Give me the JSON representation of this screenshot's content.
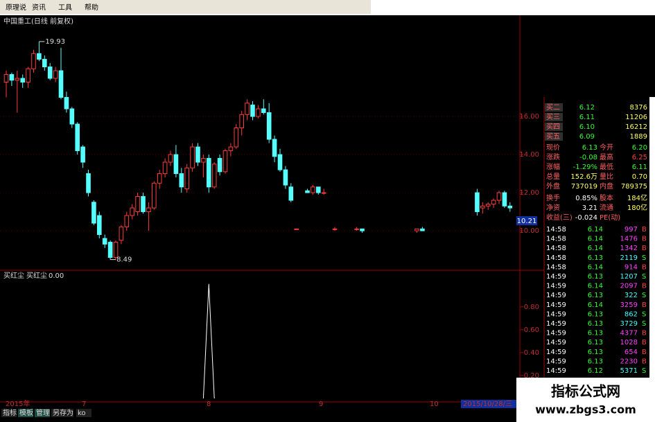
{
  "menu": [
    "原理说",
    "资讯",
    "工具",
    "帮助"
  ],
  "chart_data": [
    {
      "type": "candlestick",
      "title": "中国重工(日线 前复权)",
      "up_color": "#ff3b3b",
      "down_color": "#54ffff",
      "open": [
        17.8,
        18.2,
        17.9,
        18.0,
        17.8,
        18.5,
        19.3,
        19.0,
        18.6,
        18.0,
        18.4,
        17.0,
        16.4,
        15.6,
        14.4,
        13.0,
        11.5,
        10.8,
        9.6,
        9.4,
        8.6,
        9.5,
        10.2,
        10.8,
        11.0,
        11.8,
        11.0,
        11.2,
        12.5,
        13.0,
        13.6,
        14.0,
        13.0,
        12.2,
        13.3,
        14.4,
        13.6,
        13.8,
        12.3,
        13.8,
        13.1,
        14.2,
        14.4,
        15.4,
        16.1,
        16.6,
        16.0,
        16.4,
        16.2,
        14.8,
        14.0,
        13.2,
        12.3,
        10.1,
        null,
        12.1,
        12.0,
        12.3,
        12.0,
        null,
        10.1,
        null,
        null,
        null,
        10.1,
        10.1,
        null,
        null,
        null,
        null,
        null,
        null,
        null,
        null,
        null,
        10.0,
        10.1,
        null,
        null,
        null,
        null,
        null,
        null,
        null,
        null,
        null,
        12.0,
        11.2,
        11.3,
        11.4,
        11.6,
        12.0,
        11.3
      ],
      "high": [
        18.4,
        18.3,
        18.4,
        18.2,
        18.6,
        19.5,
        19.93,
        19.2,
        18.8,
        18.6,
        19.6,
        17.3,
        16.5,
        15.7,
        14.5,
        13.2,
        11.6,
        11.0,
        9.8,
        9.5,
        9.5,
        10.3,
        11.0,
        11.4,
        12.0,
        12.0,
        11.5,
        12.6,
        13.2,
        13.8,
        14.2,
        14.5,
        13.3,
        13.5,
        14.6,
        14.6,
        14.0,
        14.0,
        13.6,
        14.0,
        14.3,
        14.6,
        15.6,
        16.3,
        16.9,
        16.8,
        16.6,
        16.9,
        16.7,
        15.0,
        14.3,
        13.4,
        12.5,
        10.1,
        null,
        12.2,
        12.4,
        12.3,
        12.2,
        null,
        10.2,
        null,
        null,
        null,
        10.2,
        10.1,
        null,
        null,
        null,
        null,
        null,
        null,
        null,
        null,
        null,
        10.1,
        10.2,
        null,
        null,
        null,
        null,
        null,
        null,
        null,
        null,
        null,
        12.2,
        11.5,
        11.5,
        11.7,
        12.1,
        12.1,
        11.5
      ],
      "low": [
        17.0,
        17.6,
        16.2,
        17.5,
        17.5,
        18.3,
        18.9,
        18.4,
        17.9,
        17.8,
        16.9,
        16.2,
        15.4,
        14.0,
        13.3,
        11.8,
        10.3,
        9.6,
        9.1,
        8.49,
        8.5,
        9.3,
        10.0,
        10.6,
        10.8,
        10.9,
        10.0,
        11.1,
        12.2,
        12.8,
        13.4,
        12.8,
        12.0,
        12.0,
        13.1,
        13.4,
        12.8,
        12.0,
        12.2,
        12.9,
        13.0,
        13.9,
        14.3,
        15.0,
        15.8,
        15.8,
        15.9,
        16.1,
        14.6,
        13.6,
        13.1,
        12.2,
        11.5,
        10.1,
        null,
        12.0,
        11.9,
        11.9,
        11.9,
        null,
        10.0,
        null,
        null,
        null,
        10.0,
        9.9,
        null,
        null,
        null,
        null,
        null,
        null,
        null,
        null,
        null,
        9.9,
        10.0,
        null,
        null,
        null,
        null,
        null,
        null,
        null,
        null,
        null,
        10.8,
        10.9,
        11.1,
        11.2,
        11.4,
        11.2,
        11.0
      ],
      "close": [
        18.2,
        17.9,
        18.0,
        17.8,
        18.5,
        19.3,
        19.0,
        18.6,
        18.0,
        18.4,
        17.0,
        16.4,
        15.6,
        14.2,
        13.6,
        12.0,
        10.4,
        9.8,
        9.3,
        8.6,
        9.4,
        10.2,
        10.8,
        11.2,
        11.8,
        11.0,
        11.2,
        12.5,
        13.0,
        13.6,
        14.0,
        13.0,
        12.3,
        13.3,
        14.4,
        13.6,
        13.8,
        12.3,
        13.5,
        13.1,
        14.2,
        14.4,
        15.4,
        16.1,
        16.7,
        16.0,
        16.4,
        16.2,
        14.8,
        13.9,
        13.2,
        12.4,
        11.6,
        10.1,
        null,
        12.0,
        12.3,
        12.0,
        12.0,
        null,
        10.1,
        null,
        null,
        null,
        10.1,
        10.0,
        null,
        null,
        null,
        null,
        null,
        null,
        null,
        null,
        null,
        10.1,
        10.0,
        null,
        null,
        null,
        null,
        null,
        null,
        null,
        null,
        null,
        11.0,
        11.3,
        11.4,
        11.6,
        12.0,
        11.3,
        11.2
      ],
      "annotations": [
        "19.93",
        "8.49"
      ],
      "ylim": [
        7.93,
        21.31
      ],
      "yticks": [
        {
          "value": 10,
          "label": "10.00"
        },
        {
          "value": 12,
          "label": "12.00"
        },
        {
          "value": 14,
          "label": "14.00"
        },
        {
          "value": 16,
          "label": "16.00"
        }
      ],
      "price_tag": "10.21",
      "grid": true
    },
    {
      "type": "line",
      "title": "买红尘",
      "legend": "买红尘",
      "legend_value": "0.00",
      "color": "#ffffff",
      "x": [
        36,
        37,
        38
      ],
      "values": [
        0,
        1,
        0
      ],
      "ylim": [
        0,
        1.12
      ],
      "yticks": [
        {
          "value": 0.2,
          "label": "0.20"
        },
        {
          "value": 0.4,
          "label": "0.40"
        },
        {
          "value": 0.6,
          "label": "0.60"
        },
        {
          "value": 0.8,
          "label": "0.80"
        }
      ]
    }
  ],
  "x_axis": [
    "2015年",
    "7",
    "8",
    "9",
    "10",
    "2015/10/28/三"
  ],
  "order_book": [
    [
      "买二",
      "6.12",
      "8376"
    ],
    [
      "买三",
      "6.11",
      "11206"
    ],
    [
      "买四",
      "6.10",
      "16212"
    ],
    [
      "买五",
      "6.09",
      "1889"
    ]
  ],
  "quote": [
    [
      "现价",
      "6.13",
      "今开",
      "6.20"
    ],
    [
      "涨跌",
      "-0.08",
      "最高",
      "6.25"
    ],
    [
      "涨幅",
      "-1.29%",
      "最低",
      "6.11"
    ],
    [
      "总量",
      "152.6万",
      "量比",
      "0.70"
    ],
    [
      "外盘",
      "737019",
      "内盘",
      "789375"
    ],
    [
      "换手",
      "0.85%",
      "股本",
      "184亿"
    ],
    [
      "净资",
      "3.21",
      "流通",
      "180亿"
    ],
    [
      "收益(三)",
      "-0.024",
      "PE(动)",
      ""
    ]
  ],
  "trades": [
    [
      "14:58",
      "6.14",
      "997",
      "B"
    ],
    [
      "14:58",
      "6.14",
      "1476",
      "B"
    ],
    [
      "14:58",
      "6.14",
      "1342",
      "B"
    ],
    [
      "14:58",
      "6.13",
      "2119",
      "S"
    ],
    [
      "14:58",
      "6.14",
      "914",
      "B"
    ],
    [
      "14:59",
      "6.13",
      "1207",
      "S"
    ],
    [
      "14:59",
      "6.14",
      "2097",
      "B"
    ],
    [
      "14:59",
      "6.13",
      "322",
      "S"
    ],
    [
      "14:59",
      "6.14",
      "3259",
      "B"
    ],
    [
      "14:59",
      "6.13",
      "862",
      "S"
    ],
    [
      "14:59",
      "6.13",
      "3729",
      "S"
    ],
    [
      "14:59",
      "6.13",
      "4377",
      "B"
    ],
    [
      "14:59",
      "6.13",
      "1028",
      "B"
    ],
    [
      "14:59",
      "6.13",
      "654",
      "B"
    ],
    [
      "14:59",
      "6.13",
      "2230",
      "B"
    ],
    [
      "14:59",
      "6.12",
      "5371",
      "S"
    ]
  ],
  "tabs": [
    "指标",
    "模板",
    "管理",
    "另存为",
    "ko"
  ],
  "watermark": {
    "title": "指标公式网",
    "url": "www.zbgs3.com"
  }
}
